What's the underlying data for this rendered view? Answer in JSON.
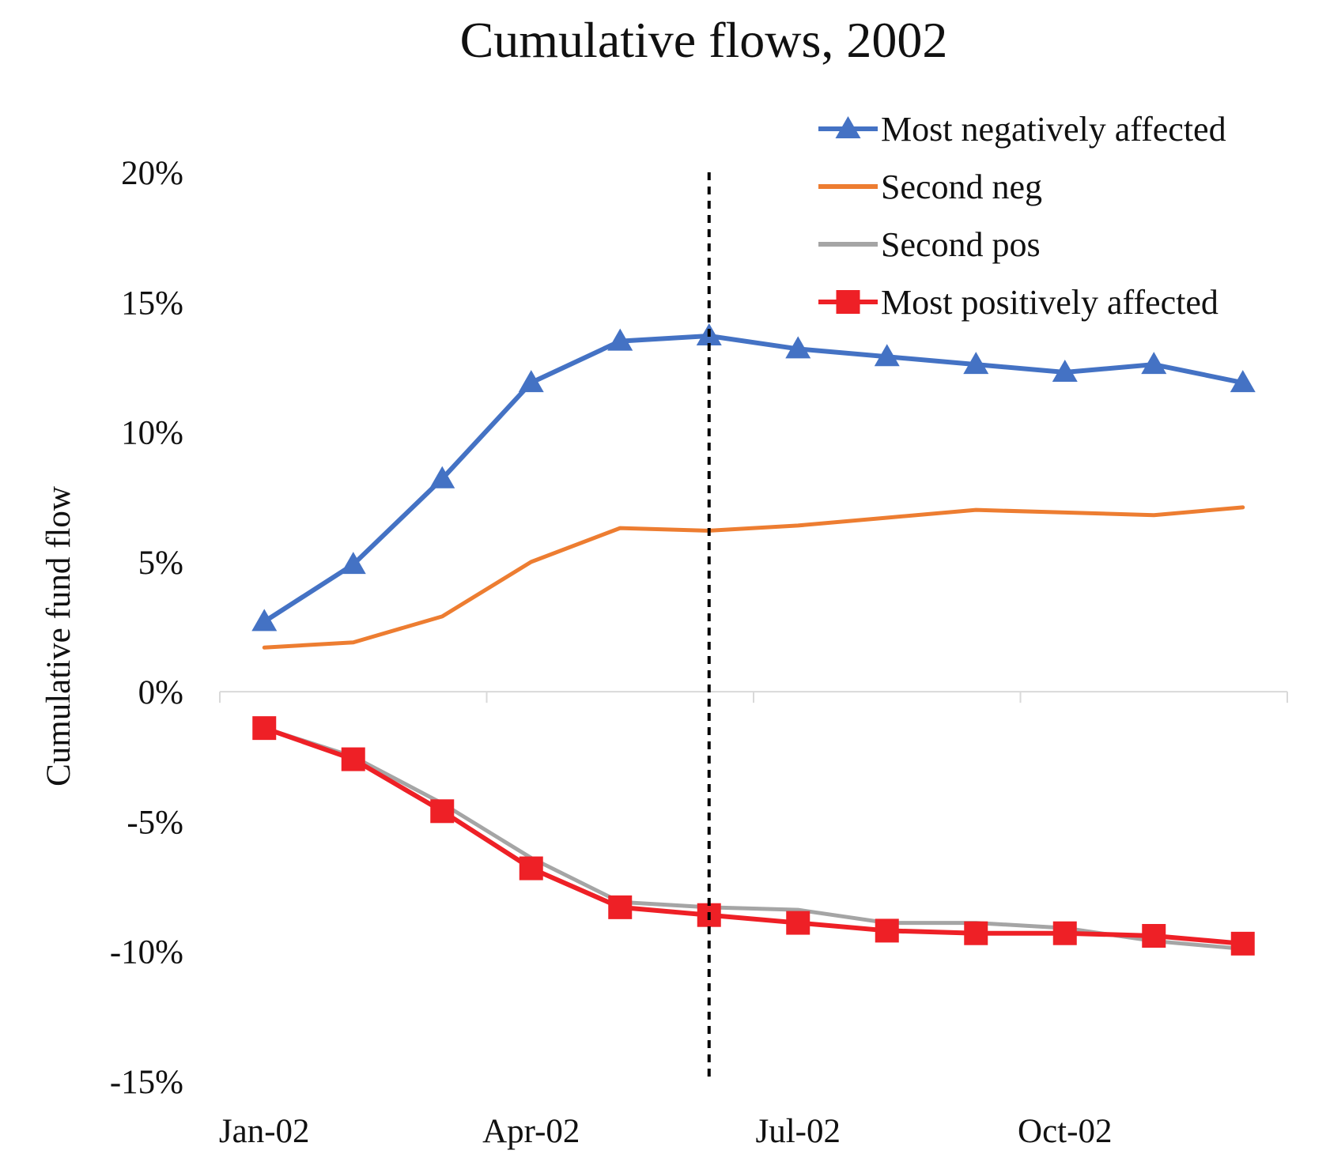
{
  "chart_data": {
    "type": "line",
    "title": "Cumulative flows, 2002",
    "xlabel": "",
    "ylabel": "Cumulative fund flow",
    "x": [
      "Jan-02",
      "Feb-02",
      "Mar-02",
      "Apr-02",
      "May-02",
      "Jun-02",
      "Jul-02",
      "Aug-02",
      "Sep-02",
      "Oct-02",
      "Nov-02",
      "Dec-02"
    ],
    "x_tick_labels": [
      "Jan-02",
      "Apr-02",
      "Jul-02",
      "Oct-02"
    ],
    "ylim": [
      -15,
      20
    ],
    "y_tick_values": [
      20,
      15,
      10,
      5,
      0,
      -5,
      -10,
      -15
    ],
    "y_tick_labels": [
      "20%",
      "15%",
      "10%",
      "5%",
      "0%",
      "-5%",
      "-10%",
      "-15%"
    ],
    "grid": false,
    "legend_position": "top-right",
    "vertical_reference_line": {
      "x": "Jun-02",
      "style": "dashed"
    },
    "series": [
      {
        "name": "Most negatively affected",
        "color": "#4472C4",
        "marker": "triangle",
        "values": [
          2.7,
          4.9,
          8.2,
          11.9,
          13.5,
          13.7,
          13.2,
          12.9,
          12.6,
          12.3,
          12.6,
          11.9
        ]
      },
      {
        "name": "Second neg",
        "color": "#ED7D31",
        "marker": "none",
        "values": [
          1.7,
          1.9,
          2.9,
          5.0,
          6.3,
          6.2,
          6.4,
          6.7,
          7.0,
          6.9,
          6.8,
          7.1
        ]
      },
      {
        "name": "Second pos",
        "color": "#A5A5A5",
        "marker": "none",
        "values": [
          -1.4,
          -2.5,
          -4.3,
          -6.4,
          -8.1,
          -8.3,
          -8.4,
          -8.9,
          -8.9,
          -9.1,
          -9.6,
          -9.9
        ]
      },
      {
        "name": "Most positively affected",
        "color": "#EE2026",
        "marker": "square",
        "values": [
          -1.4,
          -2.6,
          -4.6,
          -6.8,
          -8.3,
          -8.6,
          -8.9,
          -9.2,
          -9.3,
          -9.3,
          -9.4,
          -9.7
        ]
      }
    ]
  }
}
